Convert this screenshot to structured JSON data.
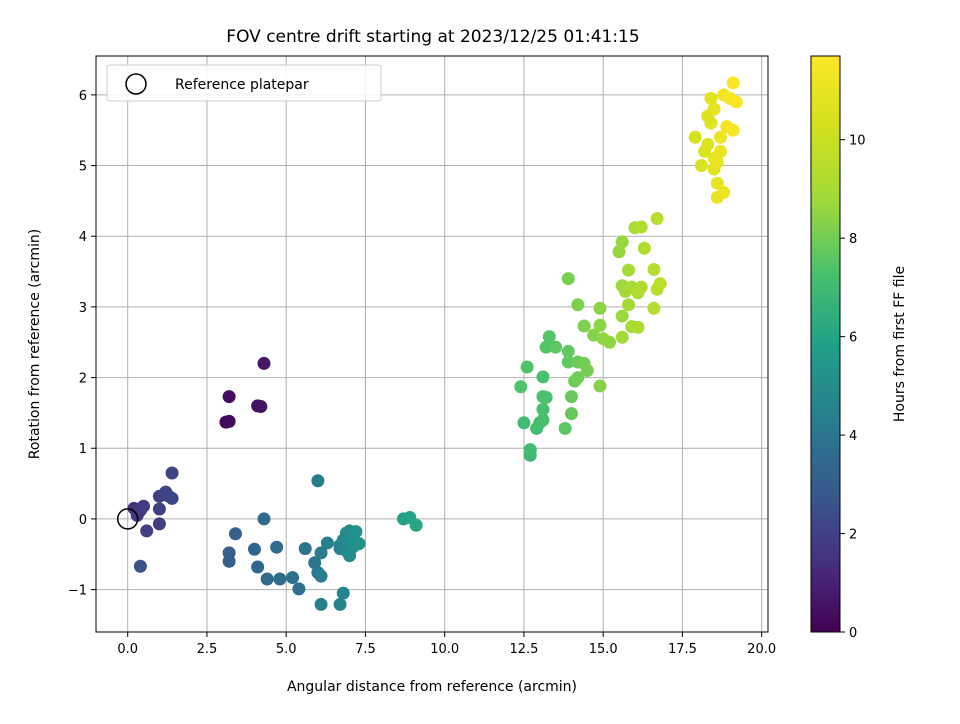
{
  "chart_data": {
    "type": "scatter",
    "title": "FOV centre drift starting at 2023/12/25 01:41:15",
    "xlabel": "Angular distance from reference (arcmin)",
    "ylabel": "Rotation from reference (arcmin)",
    "xlim": [
      -1.0,
      20.2
    ],
    "ylim": [
      -1.6,
      6.55
    ],
    "xticks": [
      0.0,
      2.5,
      5.0,
      7.5,
      10.0,
      12.5,
      15.0,
      17.5,
      20.0
    ],
    "xtick_labels": [
      "0.0",
      "2.5",
      "5.0",
      "7.5",
      "10.0",
      "12.5",
      "15.0",
      "17.5",
      "20.0"
    ],
    "yticks": [
      -1,
      0,
      1,
      2,
      3,
      4,
      5,
      6
    ],
    "ytick_labels": [
      "−1",
      "0",
      "1",
      "2",
      "3",
      "4",
      "5",
      "6"
    ],
    "grid": true,
    "colormap": "viridis",
    "colorbar": {
      "label": "Hours from first FF file",
      "range": [
        0,
        11.7
      ],
      "ticks": [
        0,
        2,
        4,
        6,
        8,
        10
      ],
      "tick_labels": [
        "0",
        "2",
        "4",
        "6",
        "8",
        "10"
      ]
    },
    "legend": {
      "placement": "top-left",
      "entries": [
        {
          "label": "Reference platepar",
          "marker": "open-circle"
        }
      ]
    },
    "reference_point": {
      "x": 0.0,
      "y": 0.0,
      "edge_color": "#000000",
      "face_color": "none"
    },
    "series": [
      {
        "points": [
          [
            3.1,
            1.37,
            0.2
          ],
          [
            3.2,
            1.38,
            0.3
          ],
          [
            3.2,
            1.73,
            0.4
          ],
          [
            4.1,
            1.6,
            0.5
          ],
          [
            4.2,
            1.59,
            0.6
          ],
          [
            4.3,
            2.2,
            0.7
          ],
          [
            0.2,
            0.15,
            1.5
          ],
          [
            0.3,
            0.05,
            1.6
          ],
          [
            0.4,
            0.12,
            1.7
          ],
          [
            0.5,
            0.18,
            1.8
          ],
          [
            0.6,
            -0.17,
            1.9
          ],
          [
            1.0,
            -0.07,
            1.9
          ],
          [
            1.0,
            0.14,
            2.0
          ],
          [
            1.0,
            0.32,
            2.0
          ],
          [
            1.2,
            0.38,
            2.1
          ],
          [
            1.3,
            0.32,
            2.1
          ],
          [
            1.4,
            0.29,
            2.2
          ],
          [
            1.4,
            0.65,
            2.2
          ],
          [
            0.4,
            -0.67,
            2.6
          ],
          [
            3.2,
            -0.48,
            3.0
          ],
          [
            3.2,
            -0.6,
            3.0
          ],
          [
            3.4,
            -0.21,
            3.1
          ],
          [
            4.0,
            -0.43,
            3.3
          ],
          [
            4.1,
            -0.68,
            3.4
          ],
          [
            4.3,
            0.0,
            3.5
          ],
          [
            4.4,
            -0.85,
            3.5
          ],
          [
            4.7,
            -0.4,
            3.6
          ],
          [
            4.8,
            -0.85,
            3.6
          ],
          [
            5.2,
            -0.83,
            3.7
          ],
          [
            5.4,
            -0.99,
            3.8
          ],
          [
            5.6,
            -0.42,
            3.9
          ],
          [
            5.9,
            -0.62,
            4.0
          ],
          [
            6.0,
            -0.76,
            4.1
          ],
          [
            6.0,
            0.54,
            4.2
          ],
          [
            6.1,
            -0.48,
            4.2
          ],
          [
            6.1,
            -1.21,
            4.3
          ],
          [
            6.1,
            -0.81,
            4.3
          ],
          [
            6.3,
            -0.34,
            4.4
          ],
          [
            6.7,
            -0.42,
            4.5
          ],
          [
            6.7,
            -0.37,
            4.6
          ],
          [
            6.7,
            -1.21,
            4.6
          ],
          [
            6.8,
            -1.05,
            4.7
          ],
          [
            6.8,
            -0.3,
            4.7
          ],
          [
            6.9,
            -0.45,
            4.8
          ],
          [
            6.9,
            -0.2,
            4.8
          ],
          [
            7.0,
            -0.3,
            4.9
          ],
          [
            7.0,
            -0.52,
            4.9
          ],
          [
            7.0,
            -0.17,
            5.0
          ],
          [
            7.1,
            -0.4,
            5.0
          ],
          [
            7.1,
            -0.28,
            5.1
          ],
          [
            7.2,
            -0.36,
            5.1
          ],
          [
            7.2,
            -0.18,
            5.2
          ],
          [
            7.3,
            -0.35,
            5.2
          ],
          [
            8.7,
            0.0,
            5.9
          ],
          [
            8.9,
            0.02,
            6.0
          ],
          [
            9.1,
            -0.09,
            6.1
          ],
          [
            12.7,
            0.9,
            6.9
          ],
          [
            12.7,
            0.98,
            7.0
          ],
          [
            12.5,
            1.36,
            7.0
          ],
          [
            12.9,
            1.28,
            7.1
          ],
          [
            13.0,
            1.36,
            7.1
          ],
          [
            13.1,
            1.4,
            7.2
          ],
          [
            13.1,
            1.55,
            7.2
          ],
          [
            13.1,
            1.73,
            7.3
          ],
          [
            13.2,
            1.72,
            7.3
          ],
          [
            13.1,
            2.01,
            7.3
          ],
          [
            12.4,
            1.87,
            7.4
          ],
          [
            12.6,
            2.15,
            7.4
          ],
          [
            13.2,
            2.43,
            7.5
          ],
          [
            13.3,
            2.58,
            7.5
          ],
          [
            13.5,
            2.43,
            7.6
          ],
          [
            13.8,
            1.28,
            7.6
          ],
          [
            13.9,
            2.37,
            7.7
          ],
          [
            13.9,
            2.22,
            7.7
          ],
          [
            14.0,
            1.73,
            7.8
          ],
          [
            14.0,
            1.49,
            7.8
          ],
          [
            14.1,
            1.95,
            7.9
          ],
          [
            14.2,
            2.22,
            7.9
          ],
          [
            14.2,
            2.0,
            8.0
          ],
          [
            14.4,
            2.2,
            8.0
          ],
          [
            14.5,
            2.1,
            8.1
          ],
          [
            13.9,
            3.4,
            8.1
          ],
          [
            14.2,
            3.03,
            8.2
          ],
          [
            14.4,
            2.73,
            8.2
          ],
          [
            14.7,
            2.6,
            8.3
          ],
          [
            14.9,
            1.88,
            8.3
          ],
          [
            14.9,
            2.98,
            8.4
          ],
          [
            14.9,
            2.74,
            8.4
          ],
          [
            15.0,
            2.55,
            8.5
          ],
          [
            15.2,
            2.5,
            8.5
          ],
          [
            15.5,
            3.78,
            8.6
          ],
          [
            15.6,
            3.92,
            8.6
          ],
          [
            15.6,
            3.3,
            8.7
          ],
          [
            15.6,
            2.87,
            8.7
          ],
          [
            15.6,
            2.57,
            8.8
          ],
          [
            15.7,
            3.22,
            8.8
          ],
          [
            15.8,
            3.03,
            8.9
          ],
          [
            15.8,
            3.52,
            8.9
          ],
          [
            15.9,
            2.72,
            9.0
          ],
          [
            15.9,
            3.28,
            9.0
          ],
          [
            16.0,
            4.12,
            9.1
          ],
          [
            16.1,
            2.71,
            9.1
          ],
          [
            16.1,
            3.2,
            9.2
          ],
          [
            16.2,
            3.28,
            9.2
          ],
          [
            16.2,
            4.13,
            9.3
          ],
          [
            16.3,
            3.83,
            9.3
          ],
          [
            16.6,
            3.53,
            9.4
          ],
          [
            16.6,
            2.98,
            9.4
          ],
          [
            16.7,
            3.25,
            9.5
          ],
          [
            16.7,
            4.25,
            9.5
          ],
          [
            16.8,
            3.33,
            9.6
          ],
          [
            17.9,
            5.4,
            10.4
          ],
          [
            18.1,
            5.0,
            10.5
          ],
          [
            18.2,
            5.2,
            10.6
          ],
          [
            18.3,
            5.7,
            10.6
          ],
          [
            18.3,
            5.3,
            10.7
          ],
          [
            18.4,
            5.6,
            10.7
          ],
          [
            18.4,
            5.95,
            10.8
          ],
          [
            18.5,
            4.95,
            10.8
          ],
          [
            18.5,
            5.8,
            10.9
          ],
          [
            18.5,
            5.1,
            10.9
          ],
          [
            18.6,
            4.55,
            11.0
          ],
          [
            18.6,
            4.75,
            11.0
          ],
          [
            18.6,
            5.05,
            11.1
          ],
          [
            18.7,
            5.2,
            11.1
          ],
          [
            18.7,
            5.4,
            11.2
          ],
          [
            18.8,
            4.62,
            11.2
          ],
          [
            18.8,
            6.0,
            11.3
          ],
          [
            18.9,
            5.55,
            11.3
          ],
          [
            19.0,
            5.95,
            11.4
          ],
          [
            19.1,
            5.5,
            11.5
          ],
          [
            19.1,
            6.17,
            11.6
          ],
          [
            19.2,
            5.9,
            11.6
          ]
        ]
      }
    ]
  }
}
